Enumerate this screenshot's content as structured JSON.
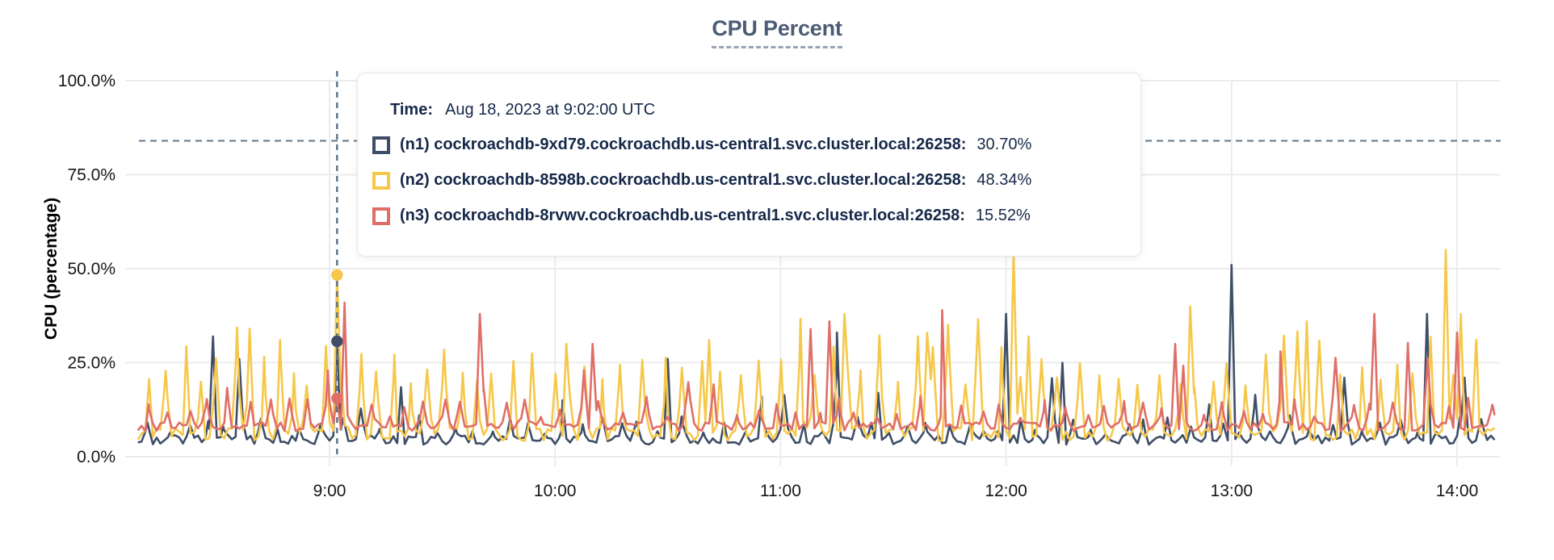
{
  "tooltip": {
    "time_label": "Time:",
    "time_value": "Aug 18, 2023 at 9:02:00 UTC"
  },
  "chart_data": {
    "type": "line",
    "title": "CPU Percent",
    "xlabel": "",
    "ylabel": "CPU (percentage)",
    "ylim": [
      0,
      100
    ],
    "grid": true,
    "legend_position": "tooltip-overlay",
    "grid_color": "#ECECEC",
    "dash_color": "#5E7689",
    "threshold_pct": 84,
    "cursor_min": 542,
    "cursor_time": "9:02:00 UTC",
    "t_start": 489,
    "t_end": 850,
    "y_ticks": [
      {
        "label": "100.0%",
        "pct": 100
      },
      {
        "label": "75.0%",
        "pct": 75
      },
      {
        "label": "50.0%",
        "pct": 50
      },
      {
        "label": "25.0%",
        "pct": 25
      },
      {
        "label": "0.0%",
        "pct": 0
      }
    ],
    "x_ticks": [
      {
        "label": "9:00",
        "min": 540
      },
      {
        "label": "10:00",
        "min": 600
      },
      {
        "label": "11:00",
        "min": 660
      },
      {
        "label": "12:00",
        "min": 720
      },
      {
        "label": "13:00",
        "min": 780
      },
      {
        "label": "14:00",
        "min": 840
      }
    ],
    "series": [
      {
        "id": "n1",
        "label": "(n1) cockroachdb-9xd79.cockroachdb.us-central1.svc.cluster.local:26258:",
        "value": "30.70%",
        "value_pct": 30.7,
        "color": "#3F4E68",
        "pattern": {
          "seed": 11,
          "base": 4.5,
          "noise": 1.3,
          "period": 5.0,
          "spike_min": 2,
          "spike_max": 7,
          "big_chance": 0.12,
          "big_min": 8,
          "big_max": 18
        },
        "peaks": [
          {
            "min": 509,
            "pct": 32
          },
          {
            "min": 516,
            "pct": 26
          },
          {
            "min": 542,
            "pct": 30.7
          },
          {
            "min": 602,
            "pct": 15
          },
          {
            "min": 630,
            "pct": 26
          },
          {
            "min": 655,
            "pct": 16
          },
          {
            "min": 675,
            "pct": 33
          },
          {
            "min": 686,
            "pct": 17
          },
          {
            "min": 720,
            "pct": 38
          },
          {
            "min": 735,
            "pct": 25
          },
          {
            "min": 780,
            "pct": 51
          },
          {
            "min": 810,
            "pct": 21
          },
          {
            "min": 832,
            "pct": 38
          },
          {
            "min": 842,
            "pct": 21
          }
        ]
      },
      {
        "id": "n2",
        "label": "(n2) cockroachdb-8598b.cockroachdb.us-central1.svc.cluster.local:26258:",
        "value": "48.34%",
        "value_pct": 48.34,
        "color": "#F6C84A",
        "pattern": {
          "seed": 22,
          "base": 6.0,
          "noise": 1.8,
          "period": 4.8,
          "spike_min": 13,
          "spike_max": 23,
          "big_chance": 0.18,
          "big_min": 23,
          "big_max": 32
        },
        "peaks": [
          {
            "min": 542,
            "pct": 48.34
          },
          {
            "min": 603,
            "pct": 30
          },
          {
            "min": 641,
            "pct": 31
          },
          {
            "min": 677,
            "pct": 38
          },
          {
            "min": 699,
            "pct": 33
          },
          {
            "min": 722,
            "pct": 55
          },
          {
            "min": 726,
            "pct": 32
          },
          {
            "min": 769,
            "pct": 40
          },
          {
            "min": 800,
            "pct": 36
          },
          {
            "min": 837,
            "pct": 55
          },
          {
            "min": 841,
            "pct": 38
          },
          {
            "min": 845,
            "pct": 30
          }
        ]
      },
      {
        "id": "n3",
        "label": "(n3) cockroachdb-8rvwv.cockroachdb.us-central1.svc.cluster.local:26258:",
        "value": "15.52%",
        "value_pct": 15.52,
        "color": "#E06E68",
        "pattern": {
          "seed": 33,
          "base": 8.0,
          "noise": 1.2,
          "period": 5.2,
          "spike_min": 3,
          "spike_max": 9,
          "big_chance": 0.15,
          "big_min": 10,
          "big_max": 24
        },
        "peaks": [
          {
            "min": 542,
            "pct": 15.52
          },
          {
            "min": 544,
            "pct": 41
          },
          {
            "min": 580,
            "pct": 38
          },
          {
            "min": 610,
            "pct": 30
          },
          {
            "min": 668,
            "pct": 34
          },
          {
            "min": 673,
            "pct": 36
          },
          {
            "min": 703,
            "pct": 39
          },
          {
            "min": 765,
            "pct": 30
          },
          {
            "min": 793,
            "pct": 28
          },
          {
            "min": 818,
            "pct": 38
          },
          {
            "min": 840,
            "pct": 33
          }
        ]
      }
    ]
  }
}
